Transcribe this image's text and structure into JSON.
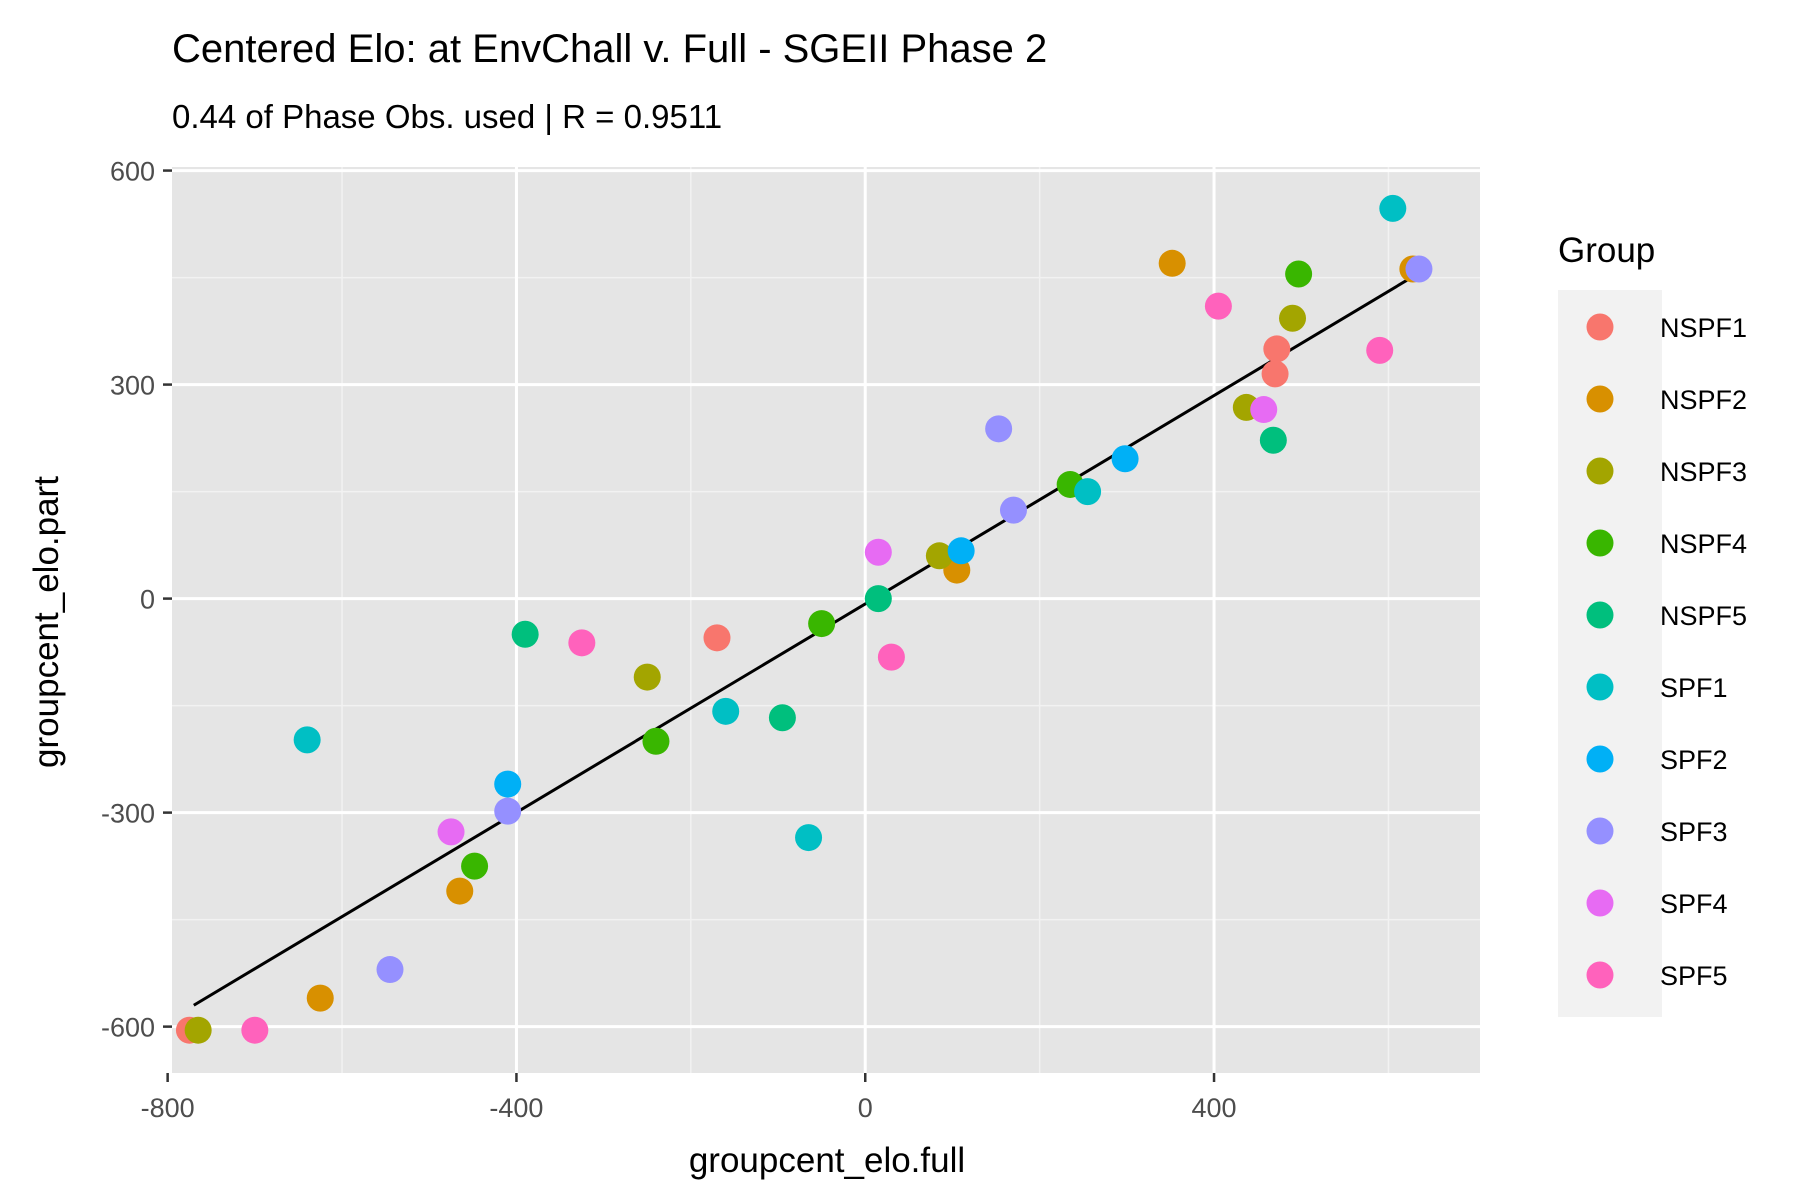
{
  "chart_data": {
    "type": "scatter",
    "title": "Centered Elo: at EnvChall v. Full - SGEII Phase 2",
    "subtitle": "0.44 of Phase Obs. used | R = 0.9511",
    "xlabel": "groupcent_elo.full",
    "ylabel": "groupcent_elo.part",
    "xlim": [
      -795,
      705
    ],
    "ylim": [
      -665,
      605
    ],
    "x_ticks": [
      -800,
      -400,
      0,
      400
    ],
    "x_tick_labels": [
      "-800",
      "-400",
      "0",
      "400"
    ],
    "y_ticks": [
      600,
      300,
      0,
      -300,
      -600
    ],
    "y_tick_labels": [
      "600",
      "300",
      "0",
      "-300",
      "-600"
    ],
    "grid": true,
    "legend": {
      "title": "Group",
      "position": "right"
    },
    "fit_line": {
      "x": [
        -770,
        640
      ],
      "y": [
        -570,
        460
      ]
    },
    "series": [
      {
        "name": "NSPF1",
        "color": "#F8766D",
        "points": [
          [
            -775,
            -605
          ],
          [
            -170,
            -55
          ],
          [
            470,
            315
          ],
          [
            472,
            350
          ]
        ]
      },
      {
        "name": "NSPF2",
        "color": "#D89000",
        "points": [
          [
            -465,
            -410
          ],
          [
            -625,
            -560
          ],
          [
            105,
            40
          ],
          [
            352,
            470
          ],
          [
            628,
            462
          ]
        ]
      },
      {
        "name": "NSPF3",
        "color": "#A3A500",
        "points": [
          [
            -765,
            -605
          ],
          [
            -250,
            -110
          ],
          [
            85,
            60
          ],
          [
            437,
            268
          ],
          [
            490,
            393
          ]
        ]
      },
      {
        "name": "NSPF4",
        "color": "#39B600",
        "points": [
          [
            -448,
            -375
          ],
          [
            -240,
            -200
          ],
          [
            -50,
            -35
          ],
          [
            235,
            160
          ],
          [
            497,
            455
          ]
        ]
      },
      {
        "name": "NSPF5",
        "color": "#00BF7D",
        "points": [
          [
            -390,
            -50
          ],
          [
            -95,
            -167
          ],
          [
            15,
            0
          ],
          [
            468,
            222
          ]
        ]
      },
      {
        "name": "SPF1",
        "color": "#00BFC4",
        "points": [
          [
            -640,
            -198
          ],
          [
            -160,
            -158
          ],
          [
            -65,
            -335
          ],
          [
            255,
            150
          ],
          [
            605,
            547
          ]
        ]
      },
      {
        "name": "SPF2",
        "color": "#00B0F6",
        "points": [
          [
            -410,
            -260
          ],
          [
            110,
            67
          ],
          [
            298,
            196
          ]
        ]
      },
      {
        "name": "SPF3",
        "color": "#9590FF",
        "points": [
          [
            -545,
            -520
          ],
          [
            -410,
            -298
          ],
          [
            153,
            238
          ],
          [
            170,
            124
          ],
          [
            635,
            462
          ]
        ]
      },
      {
        "name": "SPF4",
        "color": "#E76BF3",
        "points": [
          [
            -475,
            -327
          ],
          [
            15,
            65
          ],
          [
            457,
            265
          ]
        ]
      },
      {
        "name": "SPF5",
        "color": "#FF62BC",
        "points": [
          [
            -700,
            -605
          ],
          [
            -325,
            -62
          ],
          [
            30,
            -82
          ],
          [
            405,
            410
          ],
          [
            590,
            348
          ]
        ]
      }
    ]
  }
}
